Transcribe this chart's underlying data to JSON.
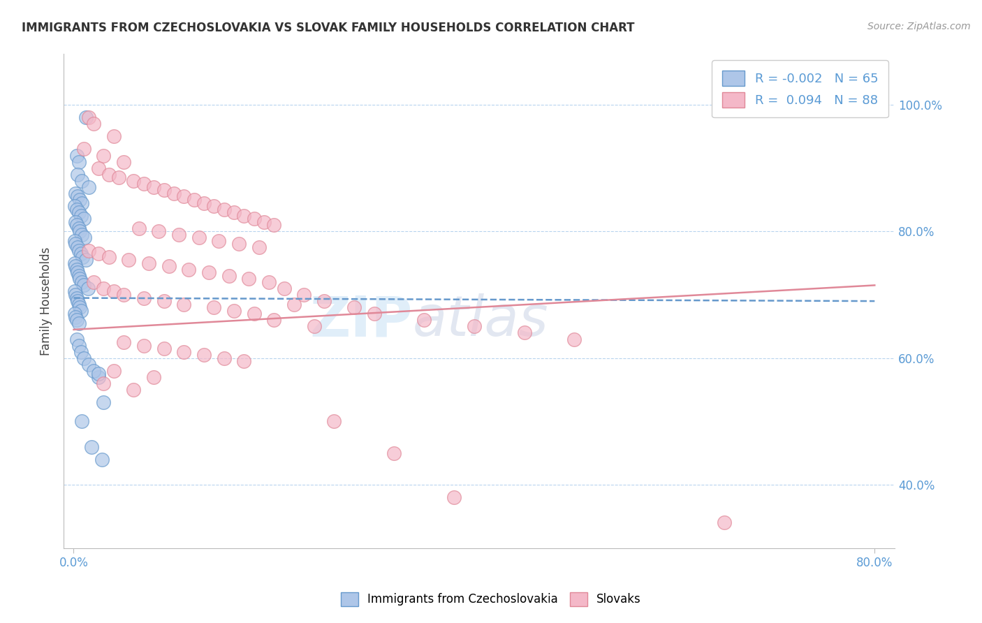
{
  "title": "IMMIGRANTS FROM CZECHOSLOVAKIA VS SLOVAK FAMILY HOUSEHOLDS CORRELATION CHART",
  "source_text": "Source: ZipAtlas.com",
  "ylabel": "Family Households",
  "x_tick_labels_bottom": [
    "0.0%",
    "80.0%"
  ],
  "x_tick_values_bottom": [
    0.0,
    80.0
  ],
  "y_tick_labels": [
    "100.0%",
    "80.0%",
    "60.0%",
    "40.0%"
  ],
  "y_tick_values": [
    100.0,
    80.0,
    60.0,
    40.0
  ],
  "xlim": [
    -1,
    82
  ],
  "ylim": [
    30,
    108
  ],
  "legend1_label": "R = -0.002   N = 65",
  "legend2_label": "R =  0.094   N = 88",
  "bottom_legend1": "Immigrants from Czechoslovakia",
  "bottom_legend2": "Slovaks",
  "color_blue": "#aec6e8",
  "color_pink": "#f4b8c8",
  "color_blue_edge": "#6699cc",
  "color_pink_edge": "#e08898",
  "color_trend_blue": "#6699cc",
  "color_trend_pink": "#e08898",
  "watermark": "ZIPatlas",
  "blue_scatter_x": [
    1.2,
    0.3,
    0.5,
    0.4,
    0.8,
    1.5,
    0.2,
    0.4,
    0.6,
    0.8,
    0.1,
    0.3,
    0.5,
    0.7,
    1.0,
    0.2,
    0.3,
    0.5,
    0.6,
    0.8,
    1.1,
    0.1,
    0.2,
    0.4,
    0.5,
    0.7,
    0.9,
    1.2,
    0.1,
    0.2,
    0.3,
    0.4,
    0.5,
    0.6,
    0.8,
    1.0,
    1.4,
    0.1,
    0.2,
    0.3,
    0.4,
    0.5,
    0.6,
    0.7,
    0.1,
    0.2,
    0.3,
    0.5,
    2.5,
    3.0,
    0.8,
    1.8,
    2.8,
    0.3,
    0.5,
    0.7,
    1.0,
    1.5,
    2.0,
    2.5
  ],
  "blue_scatter_y": [
    98.0,
    92.0,
    91.0,
    89.0,
    88.0,
    87.0,
    86.0,
    85.5,
    85.0,
    84.5,
    84.0,
    83.5,
    83.0,
    82.5,
    82.0,
    81.5,
    81.0,
    80.5,
    80.0,
    79.5,
    79.0,
    78.5,
    78.0,
    77.5,
    77.0,
    76.5,
    76.0,
    75.5,
    75.0,
    74.5,
    74.0,
    73.5,
    73.0,
    72.5,
    72.0,
    71.5,
    71.0,
    70.5,
    70.0,
    69.5,
    69.0,
    68.5,
    68.0,
    67.5,
    67.0,
    66.5,
    66.0,
    65.5,
    57.0,
    53.0,
    50.0,
    46.0,
    44.0,
    63.0,
    62.0,
    61.0,
    60.0,
    59.0,
    58.0,
    57.5
  ],
  "pink_scatter_x": [
    1.5,
    2.0,
    4.0,
    1.0,
    3.0,
    5.0,
    2.5,
    3.5,
    4.5,
    6.0,
    7.0,
    8.0,
    9.0,
    10.0,
    11.0,
    12.0,
    13.0,
    14.0,
    15.0,
    16.0,
    17.0,
    18.0,
    19.0,
    20.0,
    6.5,
    8.5,
    10.5,
    12.5,
    14.5,
    16.5,
    18.5,
    1.5,
    2.5,
    3.5,
    5.5,
    7.5,
    9.5,
    11.5,
    13.5,
    15.5,
    17.5,
    19.5,
    21.0,
    23.0,
    25.0,
    28.0,
    30.0,
    35.0,
    40.0,
    45.0,
    50.0,
    22.0,
    5.0,
    7.0,
    9.0,
    11.0,
    13.0,
    15.0,
    17.0,
    4.0,
    8.0,
    3.0,
    6.0,
    2.0,
    3.0,
    4.0,
    5.0,
    7.0,
    9.0,
    11.0,
    14.0,
    16.0,
    18.0,
    20.0,
    24.0,
    65.0,
    26.0,
    32.0,
    38.0
  ],
  "pink_scatter_y": [
    98.0,
    97.0,
    95.0,
    93.0,
    92.0,
    91.0,
    90.0,
    89.0,
    88.5,
    88.0,
    87.5,
    87.0,
    86.5,
    86.0,
    85.5,
    85.0,
    84.5,
    84.0,
    83.5,
    83.0,
    82.5,
    82.0,
    81.5,
    81.0,
    80.5,
    80.0,
    79.5,
    79.0,
    78.5,
    78.0,
    77.5,
    77.0,
    76.5,
    76.0,
    75.5,
    75.0,
    74.5,
    74.0,
    73.5,
    73.0,
    72.5,
    72.0,
    71.0,
    70.0,
    69.0,
    68.0,
    67.0,
    66.0,
    65.0,
    64.0,
    63.0,
    68.5,
    62.5,
    62.0,
    61.5,
    61.0,
    60.5,
    60.0,
    59.5,
    58.0,
    57.0,
    56.0,
    55.0,
    72.0,
    71.0,
    70.5,
    70.0,
    69.5,
    69.0,
    68.5,
    68.0,
    67.5,
    67.0,
    66.0,
    65.0,
    34.0,
    50.0,
    45.0,
    38.0
  ],
  "blue_trend_x": [
    0,
    80
  ],
  "blue_trend_y": [
    69.5,
    69.0
  ],
  "pink_trend_x": [
    0,
    80
  ],
  "pink_trend_y": [
    64.5,
    71.5
  ]
}
